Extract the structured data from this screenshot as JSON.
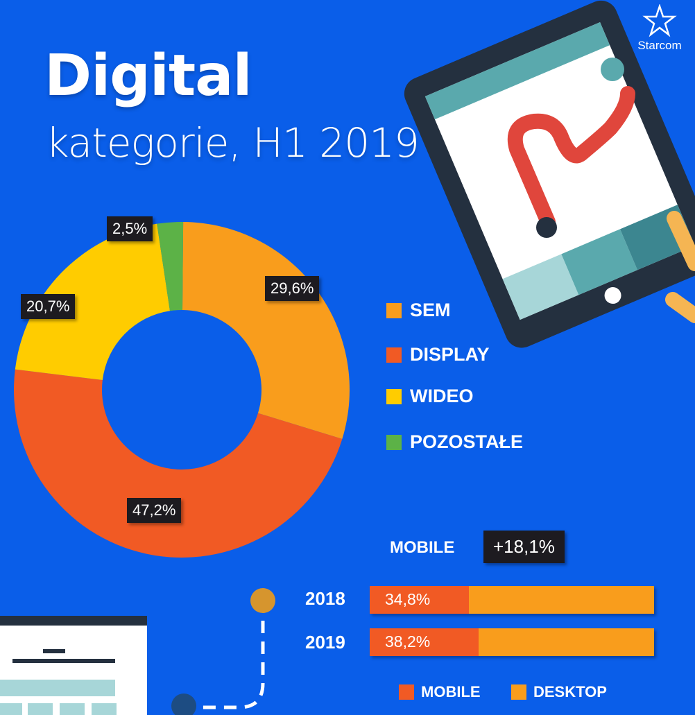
{
  "header": {
    "title": "Digital",
    "subtitle": "kategorie, H1 2019"
  },
  "logo": {
    "text": "Starcom",
    "icon": "star-burst-icon"
  },
  "colors": {
    "background": "#0a5ee9",
    "sem": "#f99d1c",
    "display": "#f15a24",
    "wideo": "#ffcc00",
    "pozostale": "#5cb247",
    "mobile": "#f15a24",
    "desktop": "#f99d1c"
  },
  "chart_data": [
    {
      "type": "pie",
      "labels": [
        "SEM",
        "DISPLAY",
        "WIDEO",
        "POZOSTAŁE"
      ],
      "values": [
        29.6,
        47.2,
        20.7,
        2.5
      ],
      "value_labels": [
        "29,6%",
        "47,2%",
        "20,7%",
        "2,5%"
      ],
      "legend_placement": "right"
    },
    {
      "type": "bar",
      "orientation": "horizontal",
      "stacked": true,
      "categories": [
        "2018",
        "2019"
      ],
      "series": [
        {
          "name": "MOBILE",
          "values": [
            34.8,
            38.2
          ],
          "value_labels": [
            "34,8%",
            "38,2%"
          ]
        },
        {
          "name": "DESKTOP",
          "values": [
            65.2,
            61.8
          ]
        }
      ],
      "annotation": {
        "label": "MOBILE",
        "value": "+18,1%"
      },
      "legend_placement": "bottom"
    }
  ]
}
